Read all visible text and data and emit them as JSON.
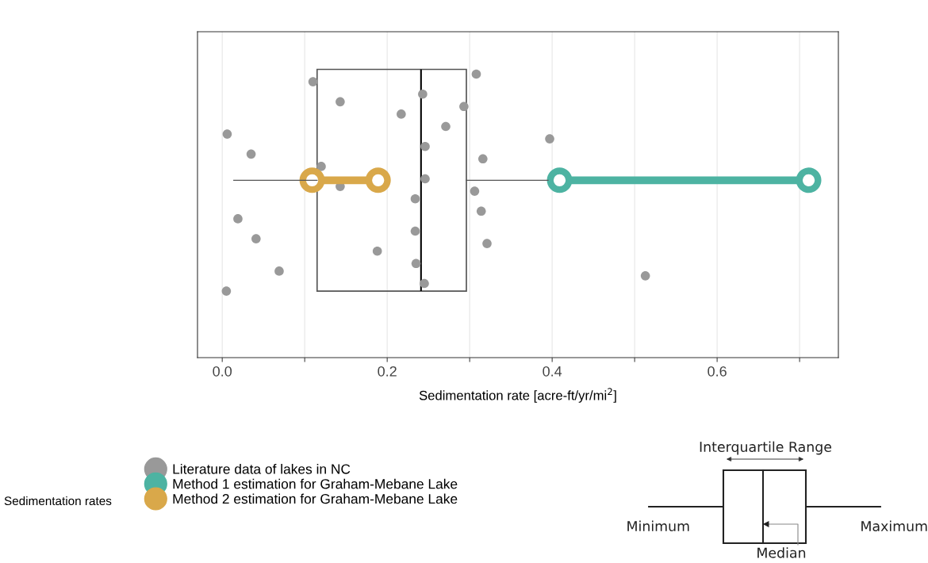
{
  "chart_data": {
    "type": "box",
    "orientation": "horizontal",
    "xlabel": "Sedimentation rate [acre-ft/yr/mi$^{2}$]",
    "legend_title": "Sedimentation rates",
    "categories": [
      null
    ],
    "boxes": [
      {
        "low": 0.014,
        "q1": 0.115,
        "median": 0.241,
        "q3": 0.296,
        "high": 0.395
      }
    ],
    "xlim": [
      -0.03,
      0.747
    ],
    "xticks": [
      {
        "value": 0.0,
        "label": "0.0"
      },
      {
        "value": 0.1,
        "label": null
      },
      {
        "value": 0.2,
        "label": "0.2"
      },
      {
        "value": 0.3,
        "label": null
      },
      {
        "value": 0.4,
        "label": "0.4"
      },
      {
        "value": 0.5,
        "label": null
      },
      {
        "value": 0.6,
        "label": "0.6"
      },
      {
        "value": 0.7,
        "label": null
      }
    ],
    "tick_labels": "x",
    "grid": "x",
    "legend": "bottom left",
    "series": [
      {
        "name": "Literature data of lakes in NC",
        "type": "scatter",
        "color": "#999999",
        "marker": "circle",
        "x": [
          null,
          null,
          null,
          null,
          null,
          null,
          null,
          null,
          null,
          null,
          null,
          null,
          null,
          null,
          null,
          null,
          null,
          null,
          null,
          null,
          null,
          null,
          null,
          null,
          null,
          null,
          null,
          null
        ],
        "values": [
          0.005,
          0.035,
          0.041,
          0.143,
          0.143,
          0.069,
          0.006,
          0.019,
          0.11,
          0.12,
          0.188,
          0.217,
          0.234,
          0.245,
          0.246,
          0.234,
          0.243,
          0.246,
          0.235,
          0.271,
          0.314,
          0.308,
          0.316,
          0.321,
          0.293,
          0.306,
          0.513,
          0.397
        ]
      },
      {
        "name": "Method 1 estimation for Graham-Mebane Lake",
        "type": "line",
        "color": "#4db3a2",
        "marker": "circle",
        "x": [
          null,
          null
        ],
        "values": [
          0.409,
          0.711
        ]
      },
      {
        "name": "Method 2 estimation for Graham-Mebane Lake",
        "type": "line",
        "color": "#d9a84a",
        "marker": "circle",
        "x": [
          null,
          null
        ],
        "values": [
          0.109,
          0.189
        ]
      }
    ],
    "annotations": [
      "Interquartile Range",
      "Minimum",
      "Maximum",
      "Median"
    ]
  }
}
